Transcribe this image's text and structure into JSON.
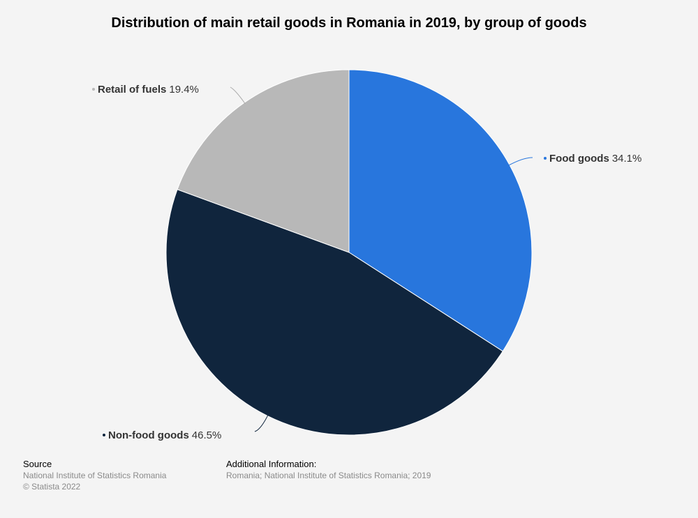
{
  "chart_data": {
    "type": "pie",
    "title": "Distribution of main retail goods in Romania in 2019, by group of goods",
    "slices": [
      {
        "label": "Food goods",
        "value": 34.1,
        "value_label": "34.1%",
        "color": "#2876dd",
        "label_side": "right"
      },
      {
        "label": "Non-food goods",
        "value": 46.5,
        "value_label": "46.5%",
        "color": "#10253d",
        "label_side": "left"
      },
      {
        "label": "Retail of fuels",
        "value": 19.4,
        "value_label": "19.4%",
        "color": "#b8b8b8",
        "label_side": "left"
      }
    ],
    "start_angle_deg": 0,
    "direction": "clockwise",
    "legend": "none"
  },
  "footer": {
    "source_heading": "Source",
    "source_text": "National Institute of Statistics Romania",
    "copyright": "© Statista 2022",
    "additional_heading": "Additional Information:",
    "additional_text": "Romania; National Institute of Statistics Romania; 2019"
  },
  "colors": {
    "background": "#f4f4f4",
    "label_text": "#333333",
    "footer_muted": "#8a8a8a"
  }
}
